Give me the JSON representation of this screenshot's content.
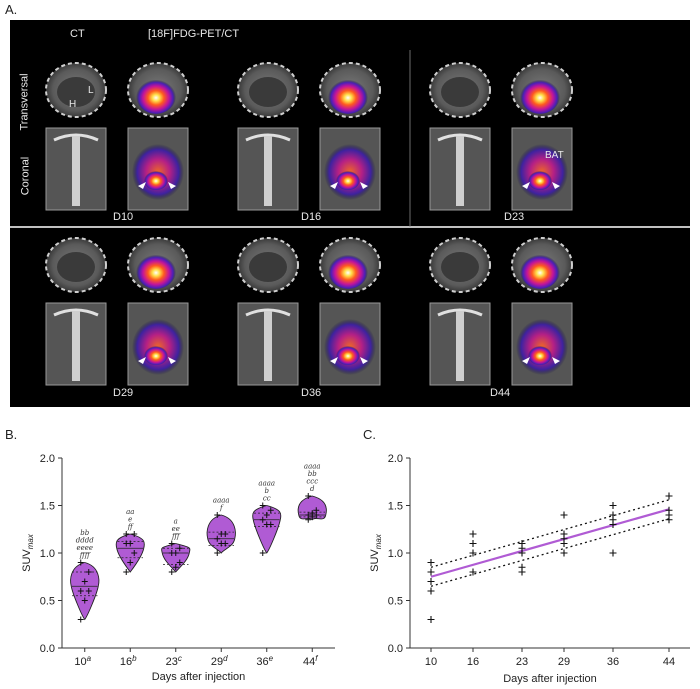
{
  "panel_a": {
    "letter": "A.",
    "col_ct": "CT",
    "col_pet": "[18F]FDG-PET/CT",
    "row_transversal": "Transversal",
    "row_coronal": "Coronal",
    "tag_h": "H",
    "tag_l": "L",
    "tag_bat": "BAT",
    "days": [
      "D10",
      "D16",
      "D23",
      "D29",
      "D36",
      "D44"
    ]
  },
  "chart_data": [
    {
      "type": "violin",
      "panel": "B.",
      "xlabel": "Days after injection",
      "ylabel": "SUV",
      "ylabel_sub": "max",
      "ylim": [
        0,
        2.0
      ],
      "yticks": [
        "0.0",
        "0.5",
        "1.0",
        "1.5",
        "2.0"
      ],
      "categories": [
        "10",
        "16",
        "23",
        "29",
        "36",
        "44"
      ],
      "category_superscripts": [
        "a",
        "b",
        "c",
        "d",
        "e",
        "f"
      ],
      "fill_color": "#b05bd4",
      "groups": [
        {
          "day": 10,
          "points": [
            0.3,
            0.5,
            0.6,
            0.6,
            0.7,
            0.8,
            0.9
          ],
          "min": 0.3,
          "max": 0.9,
          "median": 0.65,
          "q1": 0.55,
          "q3": 0.8
        },
        {
          "day": 16,
          "points": [
            0.8,
            0.9,
            1.0,
            1.1,
            1.1,
            1.2,
            1.2
          ],
          "min": 0.8,
          "max": 1.2,
          "median": 1.05,
          "q1": 0.95,
          "q3": 1.12
        },
        {
          "day": 23,
          "points": [
            0.8,
            0.85,
            0.9,
            1.0,
            1.0,
            1.05,
            1.1
          ],
          "min": 0.8,
          "max": 1.1,
          "median": 1.0,
          "q1": 0.88,
          "q3": 1.05
        },
        {
          "day": 29,
          "points": [
            1.0,
            1.1,
            1.1,
            1.15,
            1.2,
            1.2,
            1.4
          ],
          "min": 1.0,
          "max": 1.4,
          "median": 1.15,
          "q1": 1.08,
          "q3": 1.22
        },
        {
          "day": 36,
          "points": [
            1.0,
            1.3,
            1.3,
            1.35,
            1.4,
            1.45,
            1.5
          ],
          "min": 1.0,
          "max": 1.5,
          "median": 1.35,
          "q1": 1.28,
          "q3": 1.42
        },
        {
          "day": 44,
          "points": [
            1.35,
            1.38,
            1.4,
            1.4,
            1.42,
            1.45,
            1.6
          ],
          "min": 1.35,
          "max": 1.6,
          "median": 1.4,
          "q1": 1.38,
          "q3": 1.43
        }
      ],
      "significance_labels": [
        [
          "bb",
          "dddd",
          "eeee",
          "ffff"
        ],
        [
          "aa",
          "e",
          "ff"
        ],
        [
          "a",
          "ee",
          "fff"
        ],
        [
          "aaaa",
          "f"
        ],
        [
          "aaaa",
          "b",
          "cc"
        ],
        [
          "aaaa",
          "bb",
          "ccc",
          "d"
        ]
      ]
    },
    {
      "type": "scatter",
      "panel": "C.",
      "xlabel": "Days after injection",
      "ylabel": "SUV",
      "ylabel_sub": "max",
      "xlim": [
        7,
        47
      ],
      "ylim": [
        0,
        2.0
      ],
      "xticks": [
        "10",
        "16",
        "23",
        "29",
        "36",
        "44"
      ],
      "yticks": [
        "0.0",
        "0.5",
        "1.0",
        "1.5",
        "2.0"
      ],
      "line_color": "#b05bd4",
      "points": [
        [
          10,
          0.3
        ],
        [
          10,
          0.6
        ],
        [
          10,
          0.7
        ],
        [
          10,
          0.8
        ],
        [
          10,
          0.9
        ],
        [
          16,
          0.8
        ],
        [
          16,
          1.0
        ],
        [
          16,
          1.1
        ],
        [
          16,
          1.2
        ],
        [
          23,
          0.8
        ],
        [
          23,
          0.85
        ],
        [
          23,
          1.0
        ],
        [
          23,
          1.05
        ],
        [
          23,
          1.1
        ],
        [
          29,
          1.0
        ],
        [
          29,
          1.1
        ],
        [
          29,
          1.15
        ],
        [
          29,
          1.2
        ],
        [
          29,
          1.4
        ],
        [
          36,
          1.0
        ],
        [
          36,
          1.3
        ],
        [
          36,
          1.35
        ],
        [
          36,
          1.4
        ],
        [
          36,
          1.5
        ],
        [
          44,
          1.35
        ],
        [
          44,
          1.4
        ],
        [
          44,
          1.45
        ],
        [
          44,
          1.6
        ]
      ],
      "regression": {
        "x0": 10,
        "y0": 0.75,
        "x1": 44,
        "y1": 1.46
      },
      "ci_upper": {
        "x0": 10,
        "y0": 0.85,
        "x1": 44,
        "y1": 1.56
      },
      "ci_lower": {
        "x0": 10,
        "y0": 0.65,
        "x1": 44,
        "y1": 1.36
      }
    }
  ]
}
